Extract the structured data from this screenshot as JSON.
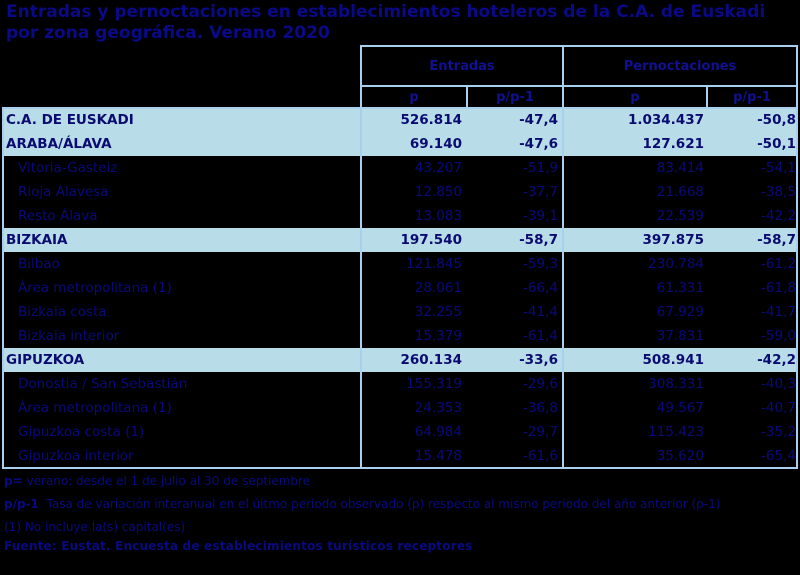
{
  "title": "Entradas y pernoctaciones en establecimientos hoteleros de la C.A. de Euskadi por zona geográfica. Verano 2020",
  "header": {
    "group1": "Entradas",
    "group2": "Pernoctaciones",
    "sub": [
      "p",
      "p/p-1",
      "p",
      "p/p-1"
    ]
  },
  "rows": [
    {
      "label": "C.A. DE EUSKADI",
      "type": "total",
      "entradas_p": "526.814",
      "entradas_var": "-47,4",
      "pernoct_p": "1.034.437",
      "pernoct_var": "-50,8"
    },
    {
      "label": "ARABA/ÁLAVA",
      "type": "total",
      "entradas_p": "69.140",
      "entradas_var": "-47,6",
      "pernoct_p": "127.621",
      "pernoct_var": "-50,1"
    },
    {
      "label": "Vitoria-Gasteiz",
      "type": "sub",
      "entradas_p": "43.207",
      "entradas_var": "-51,9",
      "pernoct_p": "83.414",
      "pernoct_var": "-54,1"
    },
    {
      "label": "Rioja Alavesa",
      "type": "sub",
      "entradas_p": "12.850",
      "entradas_var": "-37,7",
      "pernoct_p": "21.668",
      "pernoct_var": "-38,5"
    },
    {
      "label": "Resto Álava",
      "type": "sub",
      "entradas_p": "13.083",
      "entradas_var": "-39,1",
      "pernoct_p": "22.539",
      "pernoct_var": "-42,2"
    },
    {
      "label": "BIZKAIA",
      "type": "total",
      "entradas_p": "197.540",
      "entradas_var": "-58,7",
      "pernoct_p": "397.875",
      "pernoct_var": "-58,7"
    },
    {
      "label": "Bilbao",
      "type": "sub",
      "entradas_p": "121.845",
      "entradas_var": "-59,3",
      "pernoct_p": "230.784",
      "pernoct_var": "-61,2"
    },
    {
      "label": "Área metropolitana (1)",
      "type": "sub",
      "entradas_p": "28.061",
      "entradas_var": "-66,4",
      "pernoct_p": "61.331",
      "pernoct_var": "-61,8"
    },
    {
      "label": "Bizkaia costa",
      "type": "sub",
      "entradas_p": "32.255",
      "entradas_var": "-41,4",
      "pernoct_p": "67.929",
      "pernoct_var": "-41,7"
    },
    {
      "label": "Bizkaia interior",
      "type": "sub",
      "entradas_p": "15.379",
      "entradas_var": "-61,4",
      "pernoct_p": "37.831",
      "pernoct_var": "-59,0"
    },
    {
      "label": "GIPUZKOA",
      "type": "total",
      "entradas_p": "260.134",
      "entradas_var": "-33,6",
      "pernoct_p": "508.941",
      "pernoct_var": "-42,2"
    },
    {
      "label": "Donostia / San Sebastián",
      "type": "sub",
      "entradas_p": "155.319",
      "entradas_var": "-29,6",
      "pernoct_p": "308.331",
      "pernoct_var": "-40,3"
    },
    {
      "label": "Área metropolitana (1)",
      "type": "sub",
      "entradas_p": "24.353",
      "entradas_var": "-36,8",
      "pernoct_p": "49.567",
      "pernoct_var": "-40,7"
    },
    {
      "label": "Gipuzkoa costa (1)",
      "type": "sub",
      "entradas_p": "64.984",
      "entradas_var": "-29,7",
      "pernoct_p": "115.423",
      "pernoct_var": "-35,2"
    },
    {
      "label": "Gipuzkoa interior",
      "type": "sub",
      "entradas_p": "15.478",
      "entradas_var": "-61,6",
      "pernoct_p": "35.620",
      "pernoct_var": "-65,4"
    }
  ],
  "notes": {
    "p_key": "p=",
    "p_text": " verano: desde el 1 de julio al 30 de septiembre",
    "pp1_key": "p/p-1",
    "pp1_text": "  Tasa de variación interanual en el úitmo periodo observado (p) respecto al mismo periodo del año anterior (p-1)",
    "note1": "(1) No incluye la(s) capital(es)",
    "source": "Fuente: Eustat. Encuesta de establecimientos turísticos receptores"
  },
  "colors": {
    "highlight_row": "#b8dde8",
    "border": "#a8d0ee",
    "text": "#0a0a80",
    "background": "#000000"
  }
}
